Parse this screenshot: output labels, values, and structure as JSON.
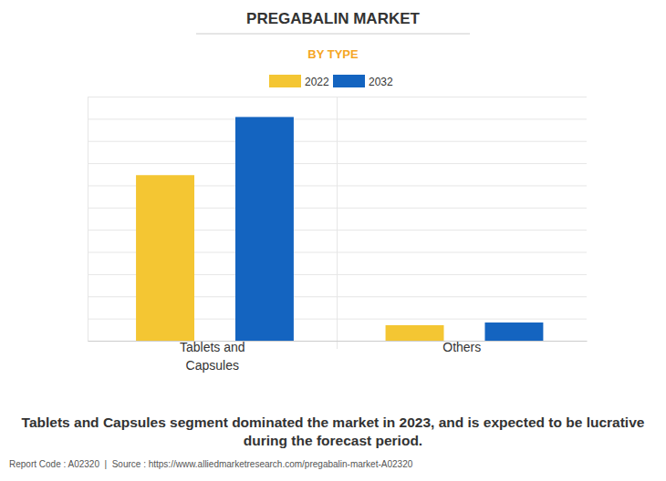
{
  "chart_data": {
    "type": "bar",
    "title": "PREGABALIN MARKET",
    "subtitle": "BY TYPE",
    "categories": [
      "Tablets and Capsules",
      "Others"
    ],
    "series": [
      {
        "name": "2022",
        "color": "#f4c633",
        "values": [
          7.46,
          0.7
        ]
      },
      {
        "name": "2032",
        "color": "#1464c0",
        "values": [
          10.08,
          0.82
        ]
      }
    ],
    "ylim": [
      0,
      11
    ],
    "yticks": [
      0,
      1,
      2,
      3,
      4,
      5,
      6,
      7,
      8,
      9,
      10,
      11
    ],
    "grid": true,
    "tick_labels": "x",
    "legend": "top",
    "annotations": [
      "Tablets and Capsules segment dominated the market in 2023, and is expected to be lucrative during the forecast period.",
      "Report Code : A02320  |  Source : https://www.alliedmarketresearch.com/pregabalin-market-A02320"
    ]
  }
}
